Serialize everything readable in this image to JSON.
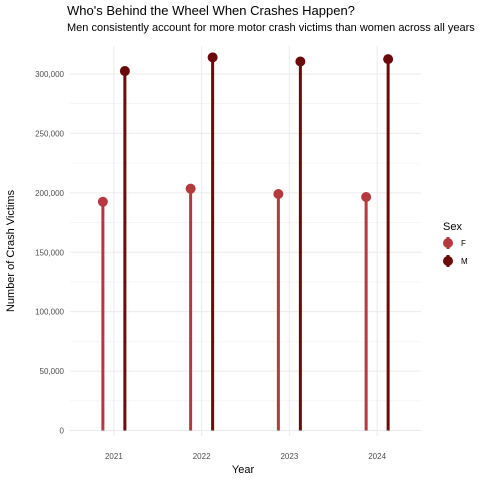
{
  "chart_data": {
    "type": "lollipop",
    "title": "Who's Behind the Wheel When Crashes Happen?",
    "subtitle": "Men consistently account for more motor crash victims than women across all years",
    "xlabel": "Year",
    "ylabel": "Number of Crash Victims",
    "categories": [
      "2021",
      "2022",
      "2023",
      "2024"
    ],
    "y_ticks": [
      0,
      50000,
      100000,
      150000,
      200000,
      250000,
      300000
    ],
    "y_tick_labels": [
      "0",
      "50,000",
      "100,000",
      "150,000",
      "200,000",
      "250,000",
      "300,000"
    ],
    "ylim": [
      0,
      322000
    ],
    "grid": true,
    "legend": {
      "title": "Sex",
      "position": "right"
    },
    "series": [
      {
        "name": "F",
        "color": "#b5393e",
        "values": [
          192500,
          203500,
          199000,
          196500
        ]
      },
      {
        "name": "M",
        "color": "#6b0a0a",
        "values": [
          302500,
          314000,
          310500,
          312500
        ]
      }
    ]
  }
}
